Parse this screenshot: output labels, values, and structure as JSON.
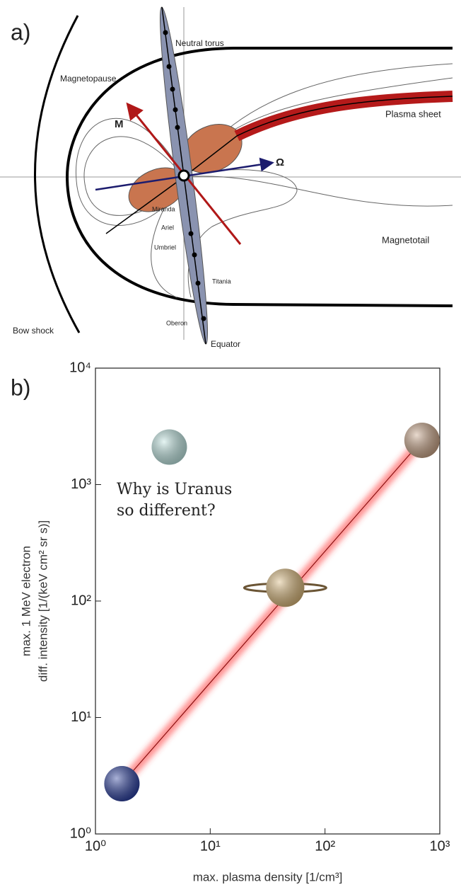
{
  "diagram": {
    "panel_label": "a)",
    "labels": {
      "neutral_torus": "Neutral torus",
      "magnetopause": "Magnetopause",
      "m": "M",
      "omega": "Ω",
      "plasma_sheet": "Plasma sheet",
      "miranda": "Miranda",
      "ariel": "Ariel",
      "umbriel": "Umbriel",
      "titania": "Titania",
      "oberon": "Oberon",
      "magnetotail": "Magnetotail",
      "bow_shock": "Bow shock",
      "equator": "Equator"
    }
  },
  "chart_data": {
    "type": "scatter",
    "panel_label": "b)",
    "xlabel": "max. plasma density [1/cm³]",
    "ylabel": [
      "max. 1 MeV electron",
      "diff. intensity [1/(keV cm² sr s)]"
    ],
    "annotation": [
      "Why is Uranus",
      "so different?"
    ],
    "xscale": "log",
    "yscale": "log",
    "xlim": [
      1,
      1000
    ],
    "ylim": [
      1,
      10000
    ],
    "xticks": [
      {
        "value": 1,
        "label": "10⁰"
      },
      {
        "value": 10,
        "label": "10¹"
      },
      {
        "value": 100,
        "label": "10²"
      },
      {
        "value": 1000,
        "label": "10³"
      }
    ],
    "yticks": [
      {
        "value": 1,
        "label": "10⁰"
      },
      {
        "value": 10,
        "label": "10¹"
      },
      {
        "value": 100,
        "label": "10²"
      },
      {
        "value": 1000,
        "label": "10³"
      },
      {
        "value": 10000,
        "label": "10⁴"
      }
    ],
    "points": {
      "x": [
        1.7,
        4.4,
        45,
        700
      ],
      "y": [
        2.7,
        2100,
        130,
        2400
      ],
      "colors": [
        "#2b3f9e",
        "#bfe6e2",
        "#d9b77a",
        "#c9a487"
      ]
    },
    "fit": {
      "x": [
        1.7,
        700
      ],
      "y": [
        2.7,
        2400
      ],
      "color": "#ff3b3b"
    }
  }
}
